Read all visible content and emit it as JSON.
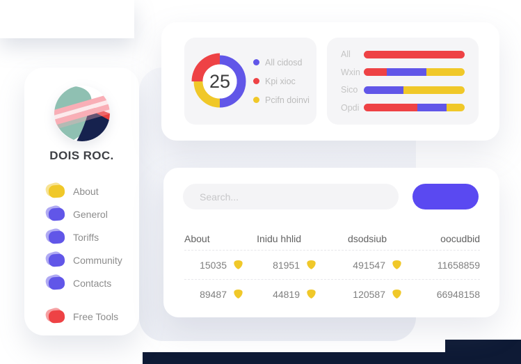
{
  "palette": {
    "red": "#ee4245",
    "blue": "#6156e8",
    "yellow": "#f0c829",
    "button": "#5a49f1",
    "dark": "#0e1a35",
    "logo_teal": "#8fc0b2",
    "logo_navy": "#16224e",
    "logo_red": "#e8403f",
    "logo_pink": "#f9aeb6"
  },
  "sidebar": {
    "brand": "DOIS ROC.",
    "items": [
      {
        "label": "About",
        "color": "#f0c829",
        "gap": false
      },
      {
        "label": "Generol",
        "color": "#6156e8",
        "gap": false
      },
      {
        "label": "Toriffs",
        "color": "#6156e8",
        "gap": false
      },
      {
        "label": "Community",
        "color": "#6156e8",
        "gap": false
      },
      {
        "label": "Contacts",
        "color": "#6156e8",
        "gap": false
      },
      {
        "label": "Free Tools",
        "color": "#ee4245",
        "gap": true
      }
    ]
  },
  "chart_data": [
    {
      "type": "pie",
      "center_label": "25",
      "legend_position": "right",
      "series": [
        {
          "name": "All cidosd",
          "value": 50,
          "color": "#6156e8"
        },
        {
          "name": "Kpi xioc",
          "value": 25,
          "color": "#ee4245"
        },
        {
          "name": "Pcifn doinvi",
          "value": 25,
          "color": "#f0c829"
        }
      ]
    },
    {
      "type": "bar",
      "orientation": "horizontal",
      "stacked": true,
      "xlim": [
        0,
        100
      ],
      "categories": [
        "All",
        "Wxin",
        "Sico",
        "Opdi"
      ],
      "series": [
        {
          "name": "red",
          "color": "#ee4245",
          "values": [
            100,
            23,
            0,
            53
          ]
        },
        {
          "name": "blue",
          "color": "#6156e8",
          "values": [
            0,
            39,
            39,
            29
          ]
        },
        {
          "name": "yellow",
          "color": "#f0c829",
          "values": [
            0,
            38,
            61,
            18
          ]
        }
      ]
    }
  ],
  "table": {
    "search_placeholder": "Search...",
    "button_label": "",
    "columns": [
      "About",
      "Inidu hhlid",
      "dsodsiub",
      "oocudbid"
    ],
    "rows": [
      [
        {
          "value": "15035",
          "shield": true
        },
        {
          "value": "81951",
          "shield": true
        },
        {
          "value": "491547",
          "shield": true
        },
        {
          "value": "11658859",
          "shield": false
        }
      ],
      [
        {
          "value": "89487",
          "shield": true
        },
        {
          "value": "44819",
          "shield": true
        },
        {
          "value": "120587",
          "shield": true
        },
        {
          "value": "66948158",
          "shield": false
        }
      ]
    ]
  }
}
